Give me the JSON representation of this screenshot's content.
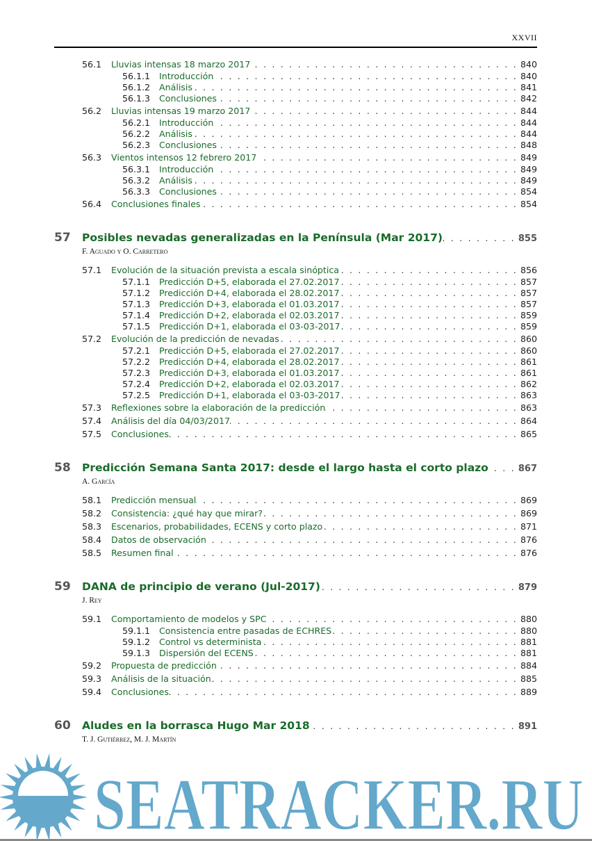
{
  "header": {
    "page_number": "XXVII"
  },
  "toc": [
    {
      "type": "section",
      "num": "56.1",
      "title": "Lluvias intensas 18 marzo 2017",
      "page": "840"
    },
    {
      "type": "sub",
      "num": "56.1.1",
      "title": "Introducción",
      "page": "840"
    },
    {
      "type": "sub",
      "num": "56.1.2",
      "title": "Análisis",
      "page": "841"
    },
    {
      "type": "sub",
      "num": "56.1.3",
      "title": "Conclusiones",
      "page": "842"
    },
    {
      "type": "section",
      "num": "56.2",
      "title": "Lluvias intensas 19 marzo 2017",
      "page": "844"
    },
    {
      "type": "sub",
      "num": "56.2.1",
      "title": "Introducción",
      "page": "844"
    },
    {
      "type": "sub",
      "num": "56.2.2",
      "title": "Análisis",
      "page": "844"
    },
    {
      "type": "sub",
      "num": "56.2.3",
      "title": "Conclusiones",
      "page": "848"
    },
    {
      "type": "section",
      "num": "56.3",
      "title": "Vientos intensos 12 febrero 2017",
      "page": "849"
    },
    {
      "type": "sub",
      "num": "56.3.1",
      "title": "Introducción",
      "page": "849"
    },
    {
      "type": "sub",
      "num": "56.3.2",
      "title": "Análisis",
      "page": "849"
    },
    {
      "type": "sub",
      "num": "56.3.3",
      "title": "Conclusiones",
      "page": "854"
    },
    {
      "type": "section",
      "num": "56.4",
      "title": "Conclusiones finales",
      "page": "854"
    },
    {
      "type": "chapter",
      "num": "57",
      "title": "Posibles nevadas generalizadas en la Península (Mar 2017)",
      "page": "855"
    },
    {
      "type": "author",
      "title": "F. Aguado y O. Carretero"
    },
    {
      "type": "section",
      "num": "57.1",
      "title": "Evolución de la situación prevista a escala sinóptica",
      "page": "856"
    },
    {
      "type": "sub",
      "num": "57.1.1",
      "title": "Predicción D+5, elaborada el 27.02.2017",
      "page": "857"
    },
    {
      "type": "sub",
      "num": "57.1.2",
      "title": "Predicción D+4, elaborada el 28.02.2017",
      "page": "857"
    },
    {
      "type": "sub",
      "num": "57.1.3",
      "title": "Predicción D+3, elaborada el 01.03.2017",
      "page": "857"
    },
    {
      "type": "sub",
      "num": "57.1.4",
      "title": "Predicción D+2, elaborada el 02.03.2017",
      "page": "859"
    },
    {
      "type": "sub",
      "num": "57.1.5",
      "title": "Predicción D+1, elaborada el 03-03-2017",
      "page": "859"
    },
    {
      "type": "section",
      "num": "57.2",
      "title": "Evolución de la predicción de nevadas",
      "page": "860"
    },
    {
      "type": "sub",
      "num": "57.2.1",
      "title": "Predicción D+5, elaborada el 27.02.2017",
      "page": "860"
    },
    {
      "type": "sub",
      "num": "57.2.2",
      "title": "Predicción D+4, elaborada el 28.02.2017",
      "page": "861"
    },
    {
      "type": "sub",
      "num": "57.2.3",
      "title": "Predicción D+3, elaborada el 01.03.2017",
      "page": "861"
    },
    {
      "type": "sub",
      "num": "57.2.4",
      "title": "Predicción D+2, elaborada el 02.03.2017",
      "page": "862"
    },
    {
      "type": "sub",
      "num": "57.2.5",
      "title": "Predicción D+1, elaborada el 03-03-2017",
      "page": "863"
    },
    {
      "type": "section",
      "num": "57.3",
      "title": "Reflexiones sobre la elaboración de la predicción",
      "page": "863"
    },
    {
      "type": "section",
      "num": "57.4",
      "title": "Análisis del día 04/03/2017",
      "page": "864"
    },
    {
      "type": "section",
      "num": "57.5",
      "title": "Conclusiones",
      "page": "865"
    },
    {
      "type": "chapter",
      "num": "58",
      "title": "Predicción Semana Santa 2017: desde el largo hasta el corto plazo",
      "page": "867"
    },
    {
      "type": "author",
      "title": "A. García"
    },
    {
      "type": "section",
      "num": "58.1",
      "title": "Predicción mensual",
      "page": "869"
    },
    {
      "type": "section",
      "num": "58.2",
      "title": "Consistencia: ¿qué hay que mirar?",
      "page": "869"
    },
    {
      "type": "section",
      "num": "58.3",
      "title": "Escenarios, probabilidades, ECENS y corto plazo",
      "page": "871"
    },
    {
      "type": "section",
      "num": "58.4",
      "title": "Datos de observación",
      "page": "876"
    },
    {
      "type": "section",
      "num": "58.5",
      "title": "Resumen final",
      "page": "876"
    },
    {
      "type": "chapter",
      "num": "59",
      "title": "DANA de principio de verano (Jul-2017)",
      "page": "879"
    },
    {
      "type": "author",
      "title": "J. Rey"
    },
    {
      "type": "section",
      "num": "59.1",
      "title": "Comportamiento de modelos y SPC",
      "page": "880"
    },
    {
      "type": "sub",
      "num": "59.1.1",
      "title": "Consistencia entre pasadas de ECHRES",
      "page": "880"
    },
    {
      "type": "sub",
      "num": "59.1.2",
      "title": "Control vs determinista",
      "page": "881"
    },
    {
      "type": "sub",
      "num": "59.1.3",
      "title": "Dispersión del ECENS",
      "page": "881"
    },
    {
      "type": "section",
      "num": "59.2",
      "title": "Propuesta de predicción",
      "page": "884"
    },
    {
      "type": "section",
      "num": "59.3",
      "title": "Análisis de la situación",
      "page": "885"
    },
    {
      "type": "section",
      "num": "59.4",
      "title": "Conclusiones",
      "page": "889"
    },
    {
      "type": "chapter",
      "num": "60",
      "title": "Aludes en la borrasca Hugo Mar 2018",
      "page": "891"
    },
    {
      "type": "author",
      "title": "T. J. Gutiérrez, M. J. Martín"
    }
  ],
  "watermark": {
    "text": "SEATRACKER.RU",
    "color": "#64a8cb"
  },
  "colors": {
    "title_green": "#1a6b2a",
    "chapter_number": "#555555"
  }
}
